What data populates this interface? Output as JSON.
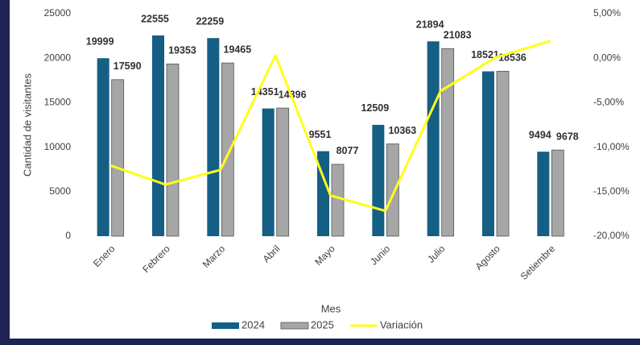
{
  "chart_data": {
    "type": "bar",
    "categories": [
      "Enero",
      "Febrero",
      "Marzo",
      "Abril",
      "Mayo",
      "Junio",
      "Julio",
      "Agosto",
      "Setiembre"
    ],
    "series": [
      {
        "name": "2024",
        "color": "#155f84",
        "values": [
          19999,
          22555,
          22259,
          14351,
          9551,
          12509,
          21894,
          18521,
          9494
        ]
      },
      {
        "name": "2025",
        "color": "#a6a6a6",
        "values": [
          17590,
          19353,
          19465,
          14396,
          8077,
          10363,
          21083,
          18536,
          9678
        ]
      },
      {
        "name": "Variación",
        "color": "#ffff1a",
        "type": "line",
        "axis": "y2",
        "values": [
          -12.05,
          -14.2,
          -12.55,
          0.31,
          -15.43,
          -17.16,
          -3.7,
          0.08,
          1.94
        ]
      }
    ],
    "x_label": "Mes",
    "y_label": "Cantidad de visitantes",
    "ylim": [
      0,
      25000
    ],
    "yticks": [
      0,
      5000,
      10000,
      15000,
      20000,
      25000
    ],
    "y2lim": [
      -20,
      5
    ],
    "y2ticks": [
      {
        "value": -20,
        "label": "-20,00%"
      },
      {
        "value": -15,
        "label": "-15,00%"
      },
      {
        "value": -10,
        "label": "-10,00%"
      },
      {
        "value": -5,
        "label": "-5,00%"
      },
      {
        "value": 0,
        "label": "0,00%"
      },
      {
        "value": 5,
        "label": "5,00%"
      }
    ],
    "legend": "bottom",
    "grid": false
  }
}
